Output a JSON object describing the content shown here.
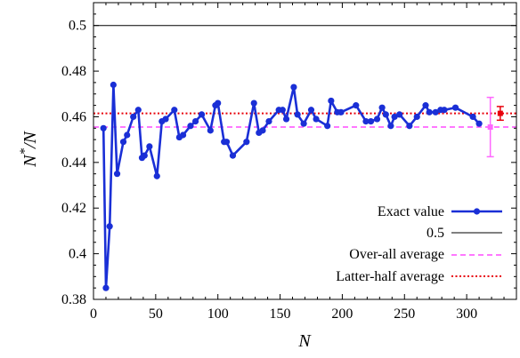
{
  "chart_data": {
    "type": "line",
    "xlabel": "N",
    "ylabel_main": "N",
    "ylabel_sup": "*",
    "ylabel_rest": "/N",
    "xlim": [
      0,
      340
    ],
    "ylim": [
      0.38,
      0.51
    ],
    "xticks": [
      0,
      50,
      100,
      150,
      200,
      250,
      300
    ],
    "yticks": [
      0.38,
      0.4,
      0.42,
      0.44,
      0.46,
      0.48,
      0.5
    ],
    "ytick_labels": [
      "0.38",
      "0.4",
      "0.42",
      "0.44",
      "0.46",
      "0.48",
      "0.5"
    ],
    "legend_position": "bottom-right",
    "series": [
      {
        "name": "Exact value",
        "style": "line-points",
        "color": "#1a2fd6",
        "x": [
          8,
          10,
          13,
          16,
          19,
          24,
          27,
          32,
          36,
          39,
          41,
          45,
          51,
          55,
          58,
          65,
          69,
          72,
          78,
          82,
          87,
          94,
          98,
          100,
          105,
          107,
          112,
          123,
          129,
          133,
          136,
          141,
          149,
          152,
          155,
          161,
          164,
          169,
          175,
          179,
          188,
          191,
          196,
          199,
          211,
          219,
          223,
          228,
          232,
          235,
          239,
          242,
          246,
          254,
          260,
          267,
          270,
          275,
          279,
          282,
          291,
          305,
          310
        ],
        "y": [
          0.455,
          0.385,
          0.412,
          0.474,
          0.435,
          0.449,
          0.452,
          0.46,
          0.463,
          0.442,
          0.443,
          0.447,
          0.434,
          0.458,
          0.459,
          0.463,
          0.451,
          0.452,
          0.456,
          0.458,
          0.461,
          0.454,
          0.465,
          0.466,
          0.449,
          0.449,
          0.443,
          0.449,
          0.466,
          0.453,
          0.454,
          0.458,
          0.463,
          0.463,
          0.459,
          0.473,
          0.461,
          0.457,
          0.463,
          0.459,
          0.456,
          0.467,
          0.462,
          0.462,
          0.465,
          0.458,
          0.458,
          0.459,
          0.464,
          0.461,
          0.456,
          0.46,
          0.461,
          0.456,
          0.46,
          0.465,
          0.462,
          0.462,
          0.463,
          0.463,
          0.464,
          0.46,
          0.457
        ]
      },
      {
        "name": "0.5",
        "style": "hline",
        "color": "#000000",
        "y": 0.5
      },
      {
        "name": "Over-all average",
        "style": "hline-dashed",
        "color": "#ff66ff",
        "y": 0.4555,
        "errorbar": {
          "x": 319,
          "y": 0.4555,
          "low": 0.4425,
          "high": 0.4685
        }
      },
      {
        "name": "Latter-half average",
        "style": "hline-dotted",
        "color": "#e8000b",
        "y": 0.4615,
        "errorbar": {
          "x": 327,
          "y": 0.4615,
          "low": 0.4585,
          "high": 0.4645
        }
      }
    ]
  }
}
